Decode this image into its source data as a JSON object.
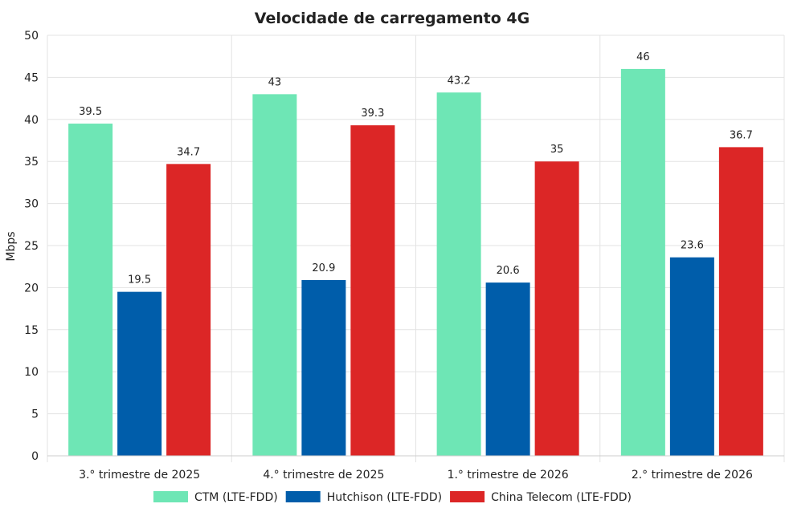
{
  "chart_data": {
    "type": "bar",
    "title": "Velocidade de carregamento 4G",
    "xlabel": "",
    "ylabel": "Mbps",
    "ylim": [
      0,
      50
    ],
    "yticks": [
      0,
      5,
      10,
      15,
      20,
      25,
      30,
      35,
      40,
      45,
      50
    ],
    "grid": true,
    "legend_position": "bottom",
    "categories": [
      "3.°  trimestre de 2025",
      "4.°  trimestre de 2025",
      "1.°  trimestre de 2026",
      "2.°  trimestre de 2026"
    ],
    "series": [
      {
        "name": "CTM (LTE-FDD)",
        "color": "#6ee6b5",
        "values": [
          39.5,
          43,
          43.2,
          46
        ]
      },
      {
        "name": "Hutchison (LTE-FDD)",
        "color": "#005daa",
        "values": [
          19.5,
          20.9,
          20.6,
          23.6
        ]
      },
      {
        "name": "China Telecom (LTE-FDD)",
        "color": "#dc2626",
        "values": [
          34.7,
          39.3,
          35,
          36.7
        ]
      }
    ]
  }
}
